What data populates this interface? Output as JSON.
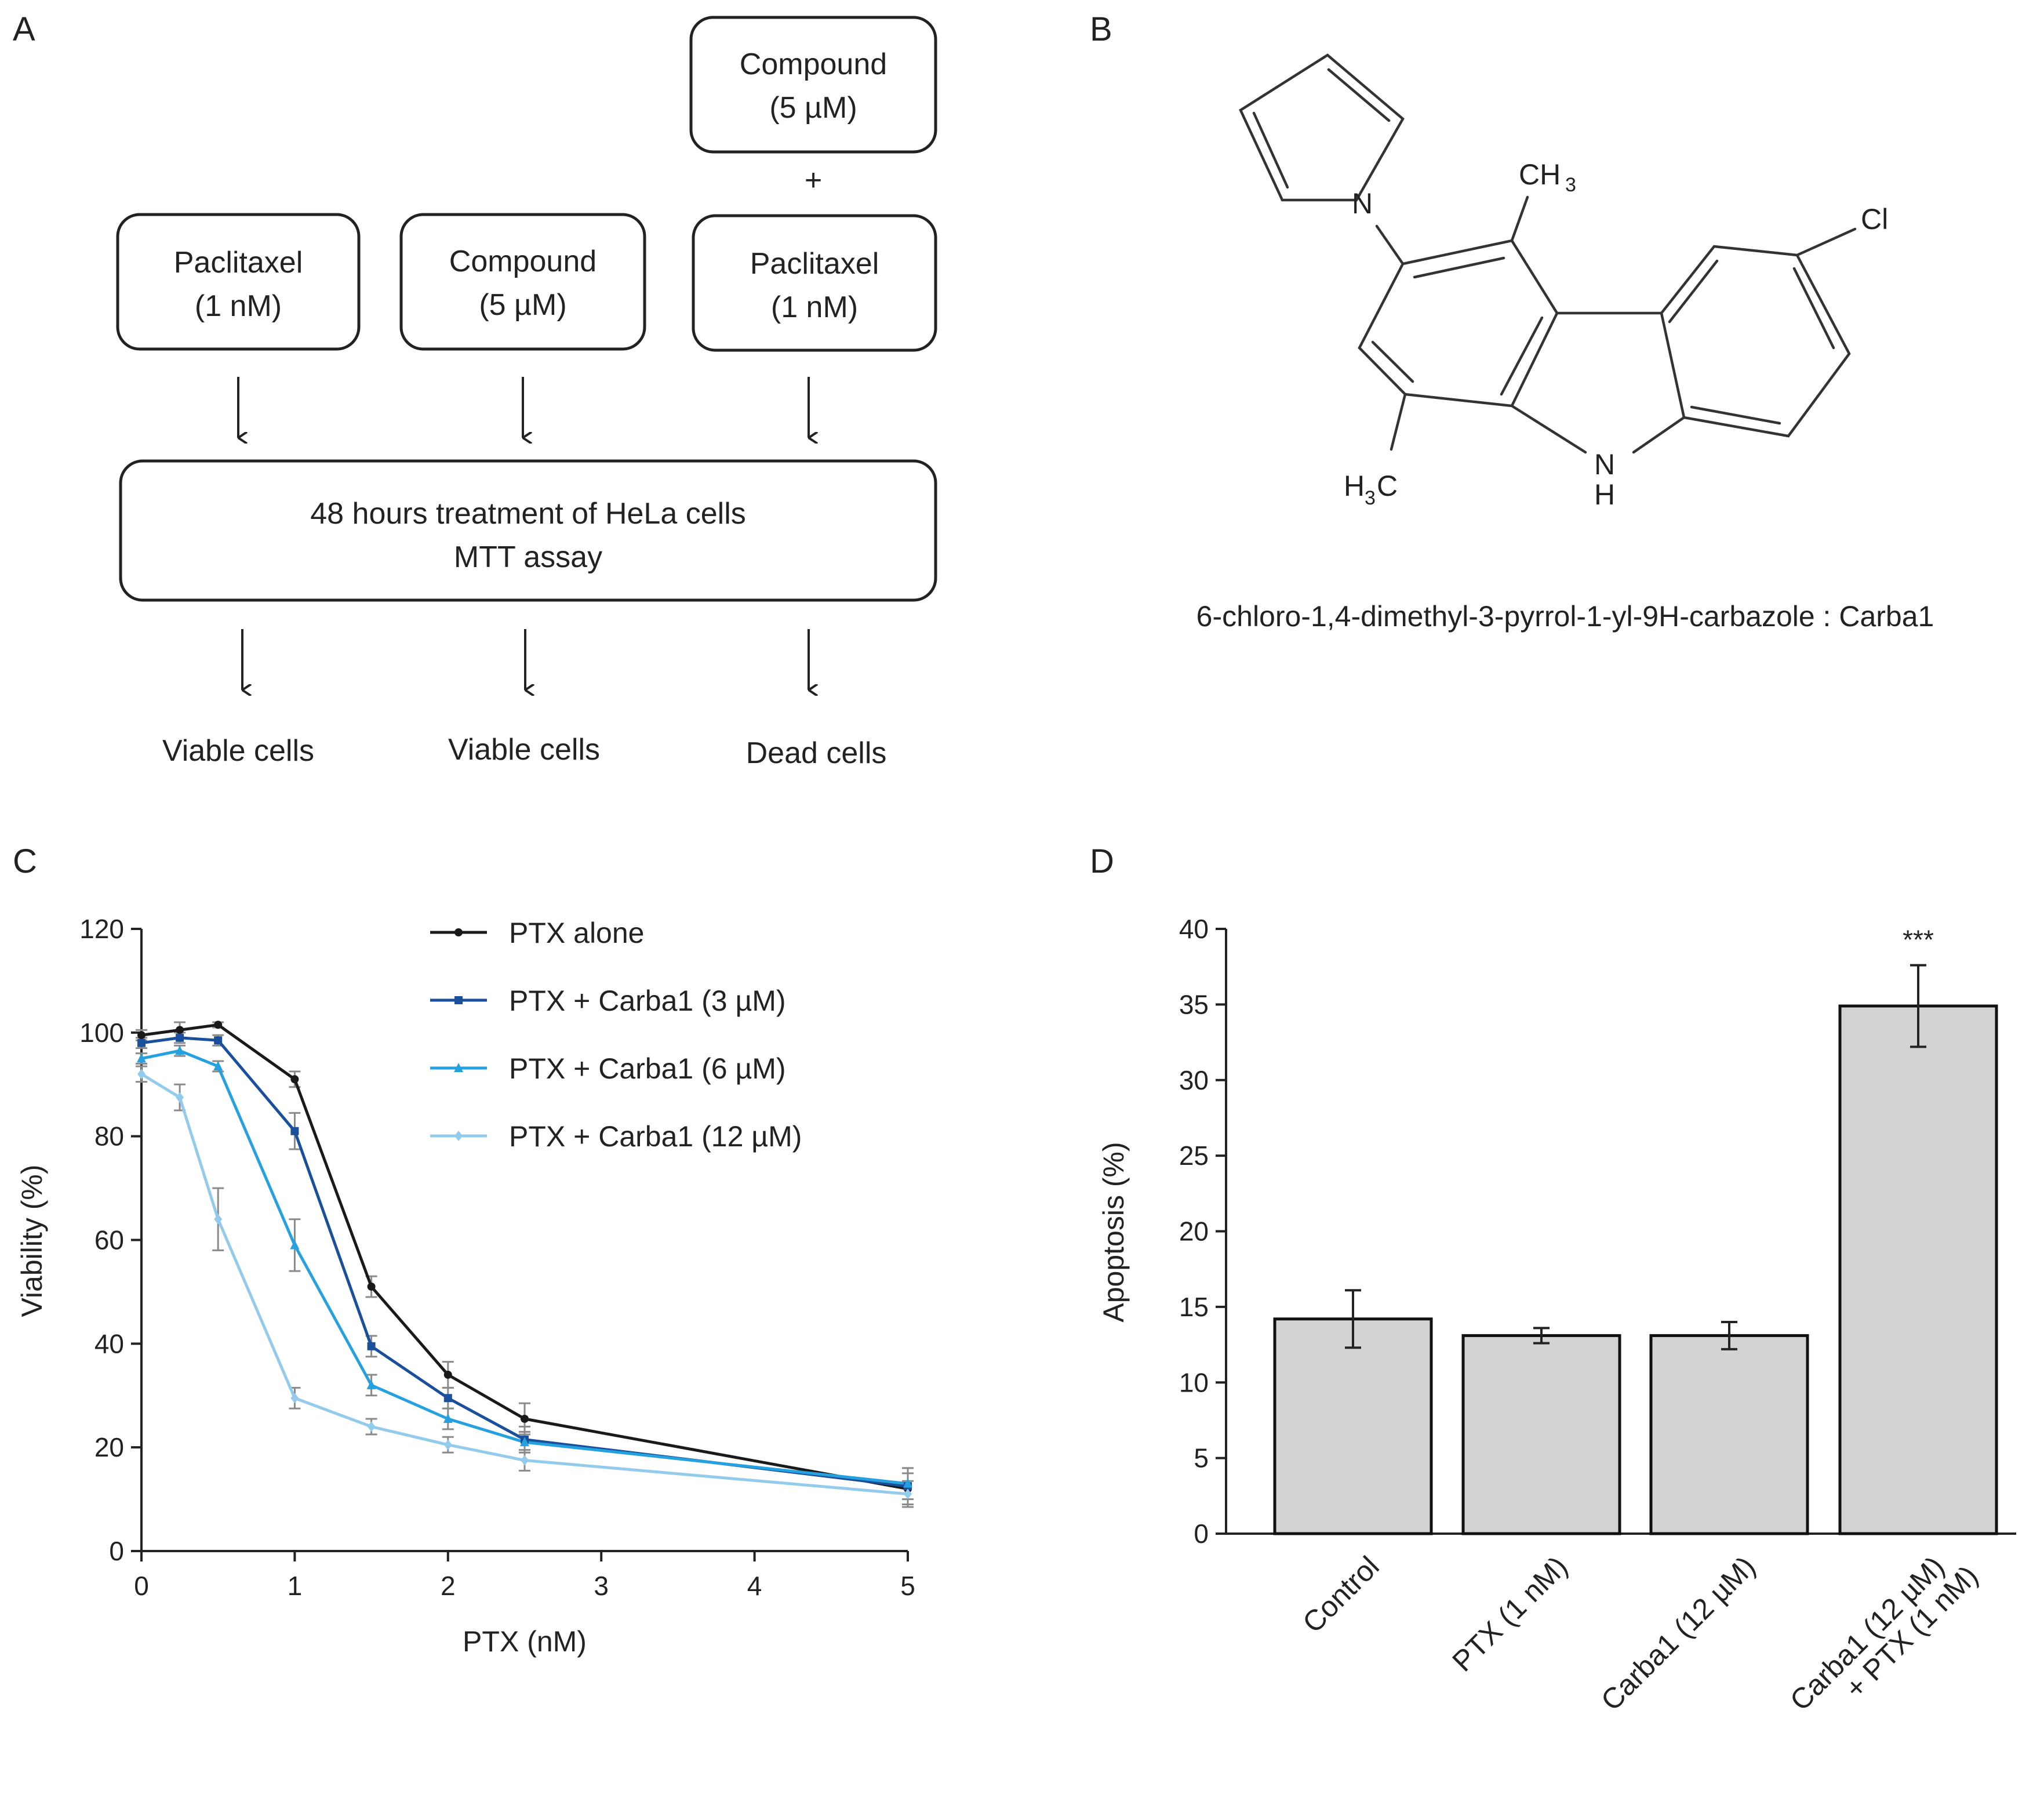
{
  "panel_labels": [
    "A",
    "B",
    "C",
    "D"
  ],
  "panel_a": {
    "boxes": {
      "paclitaxel_left": [
        "Paclitaxel",
        "(1 nM)"
      ],
      "compound_mid": [
        "Compound",
        "(5 µM)"
      ],
      "compound_top": [
        "Compound",
        "(5 µM)"
      ],
      "plus": "+",
      "paclitaxel_right": [
        "Paclitaxel",
        "(1 nM)"
      ],
      "treatment": [
        "48 hours treatment of HeLa cells",
        "MTT assay"
      ]
    },
    "outcomes": [
      "Viable cells",
      "Viable cells",
      "Dead cells"
    ]
  },
  "panel_b": {
    "atoms": {
      "n_pyrrole": "N",
      "ch3_top": "CH",
      "ch3_top_sub": "3",
      "cl": "Cl",
      "nh_n": "N",
      "nh_h": "H",
      "h3c_h": "H",
      "h3c_sub": "3",
      "h3c_c": "C"
    },
    "caption": "6-chloro-1,4-dimethyl-3-pyrrol-1-yl-9H-carbazole : Carba1"
  },
  "chart_data": [
    {
      "type": "line",
      "panel": "C",
      "xlabel": "PTX (nM)",
      "ylabel": "Viability (%)",
      "xlim": [
        0,
        5
      ],
      "ylim": [
        0,
        120
      ],
      "xticks": [
        "0",
        "1",
        "2",
        "3",
        "4",
        "5"
      ],
      "yticks": [
        "0",
        "20",
        "40",
        "60",
        "80",
        "100",
        "120"
      ],
      "x": [
        0,
        0.25,
        0.5,
        1,
        1.5,
        2,
        2.5,
        5
      ],
      "legend_position": "top-right",
      "series": [
        {
          "name": "PTX alone",
          "color": "#1a1a1a",
          "marker": "circle",
          "values": [
            99.5,
            100.5,
            101.5,
            91,
            51,
            34,
            25.5,
            12
          ],
          "errors": [
            1,
            1.5,
            0.5,
            1.5,
            2,
            2.5,
            3,
            3
          ]
        },
        {
          "name": "PTX + Carba1 (3 µM)",
          "color": "#1a4f9c",
          "marker": "square",
          "values": [
            98,
            99,
            98.5,
            81,
            39.5,
            29.5,
            21.5,
            12.5
          ],
          "errors": [
            1,
            1,
            1,
            3.5,
            2,
            2,
            2.5,
            3.5
          ]
        },
        {
          "name": "PTX + Carba1 (6 µM)",
          "color": "#26a1df",
          "marker": "triangle",
          "values": [
            95,
            96.5,
            93.5,
            59,
            32,
            25.5,
            21,
            13
          ],
          "errors": [
            1,
            1,
            1,
            5,
            2,
            2,
            2,
            3
          ]
        },
        {
          "name": "PTX + Carba1 (12 µM)",
          "color": "#93cbec",
          "marker": "diamond",
          "values": [
            92,
            87.5,
            64,
            29.5,
            24,
            20.5,
            17.5,
            11
          ],
          "errors": [
            1.5,
            2.5,
            6,
            2,
            1.5,
            1.5,
            2,
            2.5
          ]
        }
      ]
    },
    {
      "type": "bar",
      "panel": "D",
      "ylabel": "Apoptosis (%)",
      "ylim": [
        0,
        40
      ],
      "yticks": [
        "0",
        "5",
        "10",
        "15",
        "20",
        "25",
        "30",
        "35",
        "40"
      ],
      "categories": [
        [
          "Control"
        ],
        [
          "PTX (1 nM)"
        ],
        [
          "Carba1 (12 µM)"
        ],
        [
          "Carba1 (12 µM)",
          "+ PTX (1 nM)"
        ]
      ],
      "values": [
        14.2,
        13.1,
        13.1,
        34.9
      ],
      "errors": [
        1.9,
        0.5,
        0.9,
        2.7
      ],
      "annotations": [
        "",
        "",
        "",
        "***"
      ],
      "bar_color": "#d3d3d3"
    }
  ]
}
